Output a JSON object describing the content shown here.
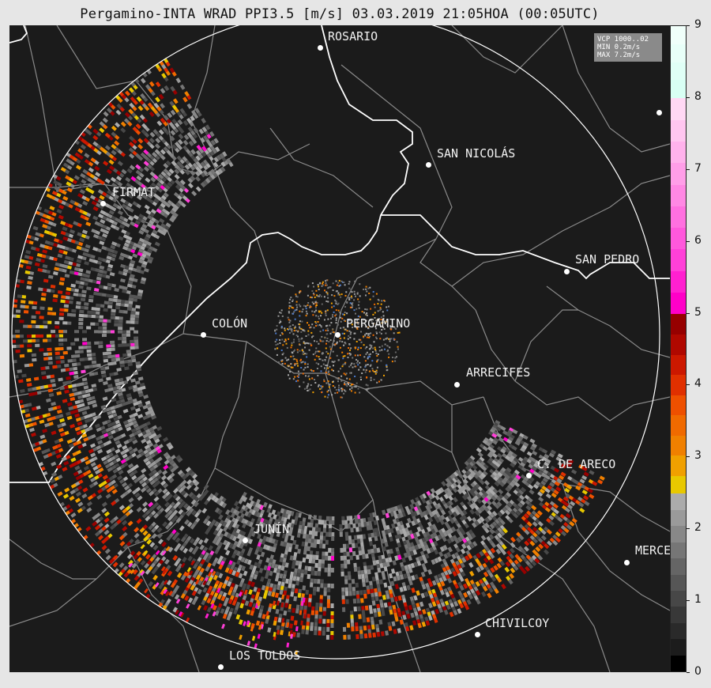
{
  "title": "Pergamino-INTA WRAD PPI3.5 [m/s] 03.03.2019 21:05HOA (00:05UTC)",
  "info": {
    "line1": "VCP 1000..02",
    "line2": "MIN 0.2m/s",
    "line3": "MAX 7.2m/s"
  },
  "cities": [
    {
      "name": "ROSARIO",
      "key": "rosario"
    },
    {
      "name": "SAN NICOLÁS",
      "key": "san-nicolas"
    },
    {
      "name": "FIRMAT",
      "key": "firmat"
    },
    {
      "name": "SAN PEDRO",
      "key": "san-pedro"
    },
    {
      "name": "COLÓN",
      "key": "colon"
    },
    {
      "name": "PERGAMINO",
      "key": "pergamino"
    },
    {
      "name": "ARRECIFES",
      "key": "arrecifes"
    },
    {
      "name": "C. DE ARECO",
      "key": "c-de-areco"
    },
    {
      "name": "JUNÍN",
      "key": "junin"
    },
    {
      "name": "MERCEDES",
      "key": "mercedes"
    },
    {
      "name": "CHIVILCOY",
      "key": "chivilcoy"
    },
    {
      "name": "LOS TOLDOS",
      "key": "los-toldos"
    },
    {
      "name": "",
      "key": "unnamed-east"
    }
  ],
  "colorbar": {
    "ticks": [
      "0",
      "1",
      "2",
      "3",
      "4",
      "5",
      "6",
      "7",
      "8",
      "9"
    ],
    "min": 0,
    "max": 9,
    "colors": {
      "black": "#000000",
      "grays": [
        "#1c1c1c",
        "#2a2a2a",
        "#383838",
        "#474747",
        "#565656",
        "#656565",
        "#767676",
        "#888888",
        "#9a9a9a",
        "#ababab"
      ],
      "yellow": "#e8c800",
      "oranges": [
        "#f0a000",
        "#f08000",
        "#f06a00",
        "#ee5000",
        "#e03000",
        "#cc1800",
        "#b00800",
        "#960000"
      ],
      "magentas": [
        "#ff00c8",
        "#ff20d0",
        "#ff40d8",
        "#ff58dc",
        "#ff70e0",
        "#ff88e4",
        "#ff9ee8",
        "#ffb2ec",
        "#ffc6f0",
        "#ffd8f4"
      ],
      "cyans": [
        "#d8fff4",
        "#e0fff6",
        "#e8fff8",
        "#f0fffa"
      ]
    }
  }
}
